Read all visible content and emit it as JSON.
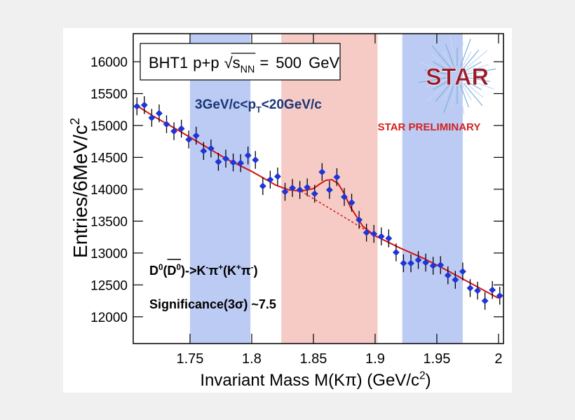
{
  "chart_data": {
    "type": "scatter",
    "x_label": [
      "Invariant Mass M(Kπ) (GeV/c",
      "2",
      ")"
    ],
    "y_label": [
      "Entries/6MeV/c",
      "2"
    ],
    "label_box": [
      "BHT1",
      "p+p",
      "√",
      "s",
      "NN",
      "= 500 GeV"
    ],
    "pt_range": [
      "3GeV/c<p",
      "T",
      "<20GeV/c"
    ],
    "preliminary": "STAR PRELIMINARY",
    "logo": "STAR",
    "decay": [
      "D",
      "0",
      "(",
      "D",
      "0",
      ")->K",
      "-",
      "π",
      "+",
      "(K",
      "+",
      "π",
      "-",
      ")"
    ],
    "significance": "Significance(3σ) ~7.5",
    "x": [
      1.707,
      1.713,
      1.719,
      1.725,
      1.731,
      1.737,
      1.743,
      1.749,
      1.755,
      1.761,
      1.767,
      1.773,
      1.779,
      1.785,
      1.791,
      1.797,
      1.803,
      1.809,
      1.815,
      1.821,
      1.827,
      1.833,
      1.839,
      1.845,
      1.851,
      1.857,
      1.863,
      1.869,
      1.875,
      1.881,
      1.887,
      1.893,
      1.899,
      1.905,
      1.911,
      1.917,
      1.923,
      1.929,
      1.935,
      1.941,
      1.947,
      1.953,
      1.959,
      1.965,
      1.971,
      1.977,
      1.983,
      1.989,
      1.995,
      2.001
    ],
    "series": [
      {
        "color": "#1f35d6",
        "yerr": 140,
        "values": [
          15300,
          15320,
          15120,
          15190,
          15020,
          14910,
          14950,
          14780,
          14840,
          14600,
          14640,
          14430,
          14480,
          14420,
          14410,
          14530,
          14460,
          14050,
          14150,
          14200,
          13960,
          14020,
          13990,
          14030,
          13930,
          14270,
          13990,
          14190,
          13880,
          13790,
          13520,
          13320,
          13300,
          13260,
          13230,
          13010,
          12840,
          12840,
          12890,
          12850,
          12800,
          12810,
          12650,
          12580,
          12710,
          12450,
          12410,
          12250,
          12420,
          12330
        ]
      }
    ],
    "fit": {
      "color": "#d41414",
      "x": [
        1.707,
        1.72,
        1.74,
        1.76,
        1.78,
        1.8,
        1.82,
        1.83,
        1.84,
        1.85,
        1.855,
        1.86,
        1.865,
        1.87,
        1.875,
        1.88,
        1.89,
        1.9,
        1.92,
        1.94,
        1.96,
        1.98,
        2.0
      ],
      "values": [
        15310,
        15150,
        14930,
        14700,
        14470,
        14280,
        14060,
        13990,
        13970,
        14010,
        14080,
        14140,
        14150,
        14090,
        13930,
        13720,
        13420,
        13270,
        13080,
        12910,
        12710,
        12500,
        12290
      ]
    },
    "fit_background": {
      "x": [
        1.84,
        1.9
      ],
      "values": [
        13970,
        13270
      ]
    },
    "bands": [
      {
        "range": [
          1.75,
          1.799
        ],
        "color": "#bccbf3"
      },
      {
        "range": [
          1.824,
          1.902
        ],
        "color": "#f6cbc5"
      },
      {
        "range": [
          1.922,
          1.971
        ],
        "color": "#bccbf3"
      }
    ],
    "xlim": [
      1.704,
      2.004
    ],
    "ylim": [
      11580,
      16440
    ],
    "xticks": [
      1.75,
      1.8,
      1.85,
      1.9,
      1.95,
      2
    ],
    "yticks": [
      12000,
      12500,
      13000,
      13500,
      14000,
      14500,
      15000,
      15500,
      16000
    ]
  }
}
